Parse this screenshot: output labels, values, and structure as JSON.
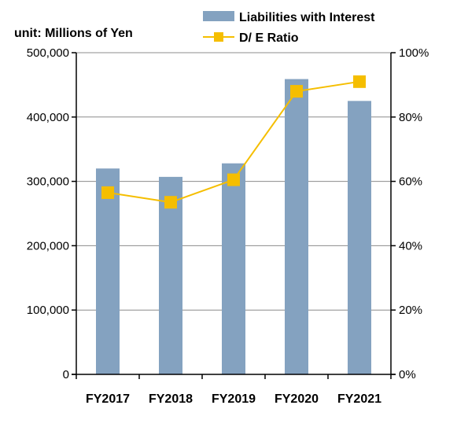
{
  "chart_data": {
    "type": "bar",
    "unit_label": "unit: Millions of Yen",
    "categories": [
      "FY2017",
      "FY2018",
      "FY2019",
      "FY2020",
      "FY2021"
    ],
    "series": [
      {
        "name": "Liabilities with Interest",
        "type": "bar",
        "axis": "left",
        "color": "#84a2c0",
        "values": [
          320000,
          307000,
          328000,
          459000,
          425000
        ]
      },
      {
        "name": "D/ E Ratio",
        "type": "line",
        "axis": "right",
        "color": "#f5be00",
        "values": [
          56.5,
          53.5,
          60.5,
          88.0,
          91.0
        ]
      }
    ],
    "y_left": {
      "ylim": [
        0,
        500000
      ],
      "ticks": [
        0,
        100000,
        200000,
        300000,
        400000,
        500000
      ],
      "tick_labels": [
        "0",
        "100,000",
        "200,000",
        "300,000",
        "400,000",
        "500,000"
      ]
    },
    "y_right": {
      "ylim": [
        0,
        100
      ],
      "ticks": [
        0,
        20,
        40,
        60,
        80,
        100
      ],
      "tick_labels": [
        "0%",
        "20%",
        "40%",
        "60%",
        "80%",
        "100%"
      ]
    },
    "grid": true,
    "legend_position": "top-right"
  }
}
